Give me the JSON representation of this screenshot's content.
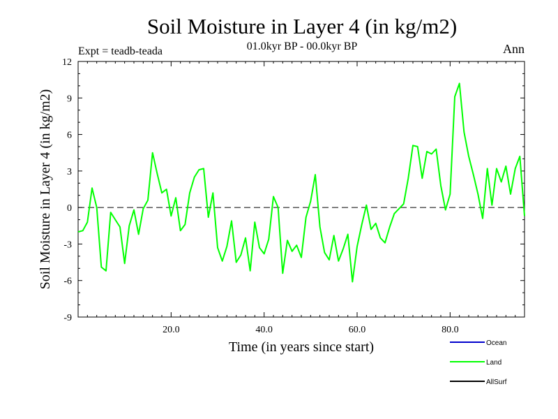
{
  "chart_data": {
    "type": "line",
    "title": "Soil Moisture in Layer 4 (in kg/m2)",
    "subtitle": "01.0kyr BP - 00.0kyr BP",
    "experiment": "Expt = teadb-teada",
    "season": "Ann",
    "xlabel": "Time (in years since start)",
    "ylabel": "Soil Moisture in Layer 4 (in kg/m2)",
    "xlim": [
      0,
      96
    ],
    "ylim": [
      -9,
      12
    ],
    "xticks": [
      20,
      40,
      60,
      80
    ],
    "xtick_labels": [
      "20.0",
      "40.0",
      "60.0",
      "80.0"
    ],
    "yticks": [
      -9,
      -6,
      -3,
      0,
      3,
      6,
      9,
      12
    ],
    "ytick_labels": [
      "-9",
      "-6",
      "-3",
      "0",
      "3",
      "6",
      "9",
      "12"
    ],
    "zero_line": {
      "y": 0,
      "style": "dashed"
    },
    "series": [
      {
        "name": "Land",
        "color": "#00ff00",
        "x": [
          0,
          1,
          2,
          3,
          4,
          5,
          6,
          7,
          8,
          9,
          10,
          11,
          12,
          13,
          14,
          15,
          16,
          17,
          18,
          19,
          20,
          21,
          22,
          23,
          24,
          25,
          26,
          27,
          28,
          29,
          30,
          31,
          32,
          33,
          34,
          35,
          36,
          37,
          38,
          39,
          40,
          41,
          42,
          43,
          44,
          45,
          46,
          47,
          48,
          49,
          50,
          51,
          52,
          53,
          54,
          55,
          56,
          57,
          58,
          59,
          60,
          61,
          62,
          63,
          64,
          65,
          66,
          67,
          68,
          69,
          70,
          71,
          72,
          73,
          74,
          75,
          76,
          77,
          78,
          79,
          80,
          81,
          82,
          83,
          84,
          85,
          86,
          87,
          88,
          89,
          90,
          91,
          92,
          93,
          94,
          95,
          96
        ],
        "values": [
          -2.0,
          -1.9,
          -1.2,
          1.6,
          0.0,
          -4.9,
          -5.2,
          -0.4,
          -1.0,
          -1.6,
          -4.6,
          -1.5,
          -0.2,
          -2.2,
          -0.1,
          0.6,
          4.5,
          2.8,
          1.2,
          1.5,
          -0.7,
          0.8,
          -1.9,
          -1.4,
          1.2,
          2.5,
          3.1,
          3.2,
          -0.8,
          1.2,
          -3.3,
          -4.4,
          -3.2,
          -1.1,
          -4.5,
          -3.9,
          -2.5,
          -5.2,
          -1.2,
          -3.3,
          -3.8,
          -2.6,
          0.9,
          0.0,
          -5.4,
          -2.7,
          -3.6,
          -3.1,
          -4.1,
          -0.8,
          0.5,
          2.7,
          -1.6,
          -3.7,
          -4.3,
          -2.3,
          -4.4,
          -3.4,
          -2.2,
          -6.1,
          -3.2,
          -1.4,
          0.2,
          -1.8,
          -1.3,
          -2.5,
          -2.9,
          -1.6,
          -0.5,
          -0.1,
          0.3,
          2.4,
          5.1,
          5.0,
          2.4,
          4.6,
          4.4,
          4.8,
          1.8,
          -0.2,
          1.1,
          9.1,
          10.2,
          6.2,
          4.2,
          2.7,
          1.1,
          -0.9,
          3.2,
          0.2,
          3.2,
          2.1,
          3.4,
          1.1,
          3.2,
          4.2,
          -0.7
        ]
      },
      {
        "name": "Ocean",
        "color": "#0000cc",
        "values": []
      },
      {
        "name": "AllSurf",
        "color": "#000000",
        "values": []
      }
    ],
    "legend": {
      "position": "bottom-right",
      "entries": [
        {
          "label": "Ocean",
          "color": "#0000cc"
        },
        {
          "label": "Land",
          "color": "#00ff00"
        },
        {
          "label": "AllSurf",
          "color": "#000000"
        }
      ]
    }
  }
}
